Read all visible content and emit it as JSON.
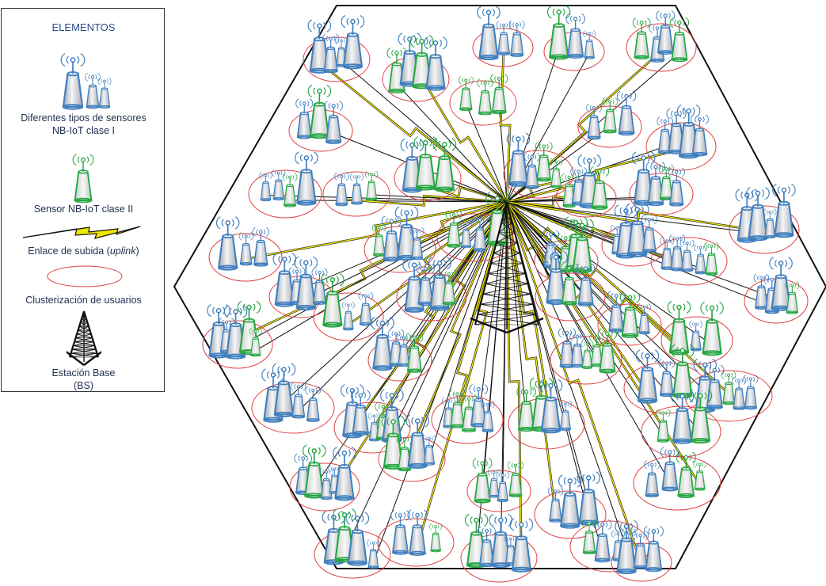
{
  "legend": {
    "title": "ELEMENTOS",
    "sensors_label_line1": "Diferentes tipos de sensores",
    "sensors_label_line2": "NB-IoT clase I",
    "class2_label": "Sensor NB-IoT clase II",
    "uplink_label_prefix": "Enlace de subida (",
    "uplink_label_italic": "uplink",
    "uplink_label_suffix": ")",
    "cluster_label": "Clusterización de usuarios",
    "bs_label_line1": "Estación Base",
    "bs_label_line2": "(BS)"
  },
  "colors": {
    "class1_sensor": "#3f7fbf",
    "class2_sensor": "#27a744",
    "cluster_ring": "#e04040",
    "uplink": "#f2e600",
    "hexagon": "#111111"
  },
  "icons": {
    "class1": "antenna-tower-blue-icon",
    "class2": "antenna-tower-green-icon",
    "uplink": "lightning-bolt-icon",
    "bs": "lattice-tower-icon"
  }
}
